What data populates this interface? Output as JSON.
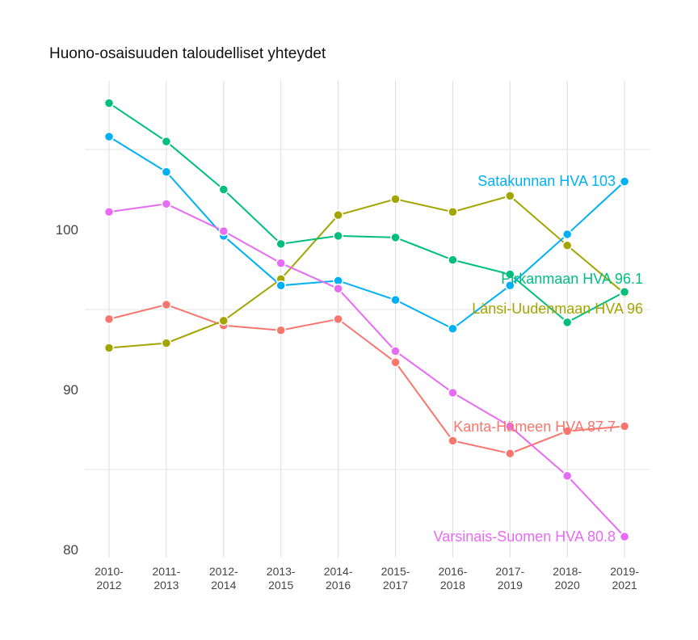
{
  "title": "Huono-osaisuuden taloudelliset yhteydet",
  "chart_data": {
    "type": "line",
    "title": "Huono-osaisuuden taloudelliset yhteydet",
    "xlabel": "",
    "ylabel": "",
    "ylim": [
      80,
      108
    ],
    "y_ticks": [
      80,
      90,
      100
    ],
    "minor_gridlines": [
      85,
      95,
      105
    ],
    "grid": true,
    "legend": "direct end labels",
    "categories": [
      "2010-2012",
      "2011-2013",
      "2012-2014",
      "2013-2015",
      "2014-2016",
      "2015-2017",
      "2016-2018",
      "2017-2019",
      "2018-2020",
      "2019-2021"
    ],
    "x_tick_lines": [
      [
        "2010-",
        "2012"
      ],
      [
        "2011-",
        "2013"
      ],
      [
        "2012-",
        "2014"
      ],
      [
        "2013-",
        "2015"
      ],
      [
        "2014-",
        "2016"
      ],
      [
        "2015-",
        "2017"
      ],
      [
        "2016-",
        "2018"
      ],
      [
        "2017-",
        "2019"
      ],
      [
        "2018-",
        "2020"
      ],
      [
        "2019-",
        "2021"
      ]
    ],
    "series": [
      {
        "name": "Kanta-Hämeen HVA",
        "color": "#F8766D",
        "end_label": "Kanta-Hämeen HVA 87.7",
        "values": [
          94.4,
          95.3,
          94.0,
          93.7,
          94.4,
          91.7,
          86.8,
          86.0,
          87.4,
          87.7
        ]
      },
      {
        "name": "Länsi-Uudenmaan HVA",
        "color": "#A3A500",
        "end_label": "Länsi-Uudenmaan HVA 96",
        "values": [
          92.6,
          92.9,
          94.3,
          96.9,
          100.9,
          101.9,
          101.1,
          102.1,
          99.0,
          96.0
        ]
      },
      {
        "name": "Pirkanmaan HVA",
        "color": "#00BF7D",
        "end_label": "Pirkanmaan HVA 96.1",
        "values": [
          107.9,
          105.5,
          102.5,
          99.1,
          99.6,
          99.5,
          98.1,
          97.2,
          94.2,
          96.1
        ]
      },
      {
        "name": "Satakunnan HVA",
        "color": "#00B0F6",
        "end_label": "Satakunnan HVA 103",
        "values": [
          105.8,
          103.6,
          99.6,
          96.5,
          96.8,
          95.6,
          93.8,
          96.5,
          99.7,
          103.0
        ]
      },
      {
        "name": "Varsinais-Suomen HVA",
        "color": "#E76BF3",
        "end_label": "Varsinais-Suomen HVA 80.8",
        "values": [
          101.1,
          101.6,
          99.9,
          97.9,
          96.3,
          92.4,
          89.8,
          87.7,
          84.6,
          80.8
        ]
      }
    ]
  }
}
